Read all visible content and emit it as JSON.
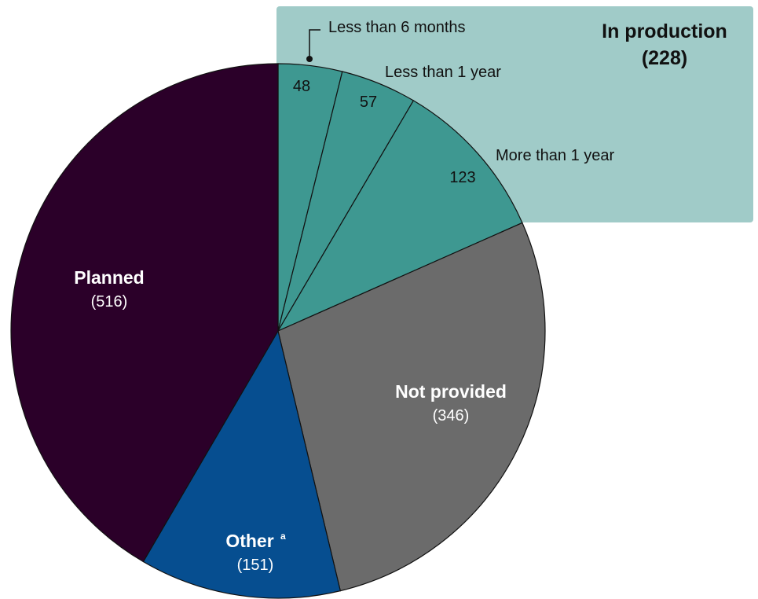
{
  "chart_data": {
    "type": "pie",
    "title": "",
    "group": {
      "name": "In production",
      "total_text": "(228)",
      "total": 228,
      "color": "#a0cbc8"
    },
    "slices": [
      {
        "key": "lt6m",
        "label": "Less than 6 months",
        "value": 48,
        "value_text": "48",
        "color": "#3e9891",
        "text_color": "#111111",
        "in_group": true
      },
      {
        "key": "lt1y",
        "label": "Less than 1 year",
        "value": 57,
        "value_text": "57",
        "color": "#3e9891",
        "text_color": "#111111",
        "in_group": true
      },
      {
        "key": "gt1y",
        "label": "More than 1 year",
        "value": 123,
        "value_text": "123",
        "color": "#3e9891",
        "text_color": "#111111",
        "in_group": true
      },
      {
        "key": "not_provided",
        "label": "Not provided",
        "value": 346,
        "value_text": "(346)",
        "color": "#6b6b6b",
        "text_color": "#ffffff",
        "in_group": false
      },
      {
        "key": "other",
        "label": "Other",
        "footnote": "a",
        "value": 151,
        "value_text": "(151)",
        "color": "#064e90",
        "text_color": "#ffffff",
        "in_group": false
      },
      {
        "key": "planned",
        "label": "Planned",
        "value": 516,
        "value_text": "(516)",
        "color": "#2b0029",
        "text_color": "#ffffff",
        "in_group": false
      }
    ]
  }
}
